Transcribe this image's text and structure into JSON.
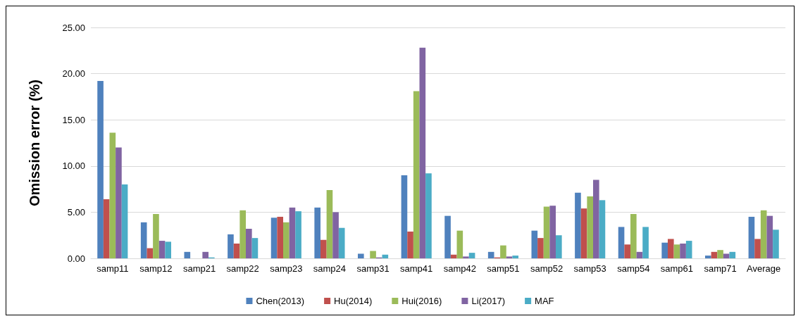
{
  "chart_data": {
    "type": "bar",
    "ylabel": "Omission error (%)",
    "categories": [
      "samp11",
      "samp12",
      "samp21",
      "samp22",
      "samp23",
      "samp24",
      "samp31",
      "samp41",
      "samp42",
      "samp51",
      "samp52",
      "samp53",
      "samp54",
      "samp61",
      "samp71",
      "Average"
    ],
    "series": [
      {
        "name": "Chen(2013)",
        "color": "#4f81bd",
        "values": [
          19.2,
          3.9,
          0.7,
          2.6,
          4.4,
          5.5,
          0.5,
          9.0,
          4.6,
          0.7,
          3.0,
          7.1,
          3.4,
          1.7,
          0.3,
          4.5
        ]
      },
      {
        "name": "Hu(2014)",
        "color": "#c0504d",
        "values": [
          6.4,
          1.1,
          0,
          1.6,
          4.5,
          2.0,
          0,
          2.9,
          0.4,
          0.1,
          2.2,
          5.4,
          1.5,
          2.1,
          0.7,
          2.1
        ]
      },
      {
        "name": "Hui(2016)",
        "color": "#9bbb59",
        "values": [
          13.6,
          4.8,
          0,
          5.2,
          3.9,
          7.4,
          0.8,
          18.1,
          3.0,
          1.4,
          5.6,
          6.7,
          4.8,
          1.5,
          0.9,
          5.2
        ]
      },
      {
        "name": "Li(2017)",
        "color": "#8064a2",
        "values": [
          12.0,
          1.9,
          0.7,
          3.2,
          5.5,
          5.0,
          0.1,
          22.8,
          0.2,
          0.2,
          5.7,
          8.5,
          0.7,
          1.6,
          0.5,
          4.6
        ]
      },
      {
        "name": "MAF",
        "color": "#4bacc6",
        "values": [
          8.0,
          1.8,
          0.1,
          2.2,
          5.1,
          3.3,
          0.4,
          9.2,
          0.6,
          0.3,
          2.5,
          6.3,
          3.4,
          1.9,
          0.7,
          3.1
        ]
      }
    ],
    "ylim": [
      0,
      25
    ],
    "yticks": [
      {
        "value": 0,
        "label": "0.00"
      },
      {
        "value": 5,
        "label": "5.00"
      },
      {
        "value": 10,
        "label": "10.00"
      },
      {
        "value": 15,
        "label": "15.00"
      },
      {
        "value": 20,
        "label": "20.00"
      },
      {
        "value": 25,
        "label": "25.00"
      }
    ],
    "grid": "y",
    "legend": "bottom"
  }
}
